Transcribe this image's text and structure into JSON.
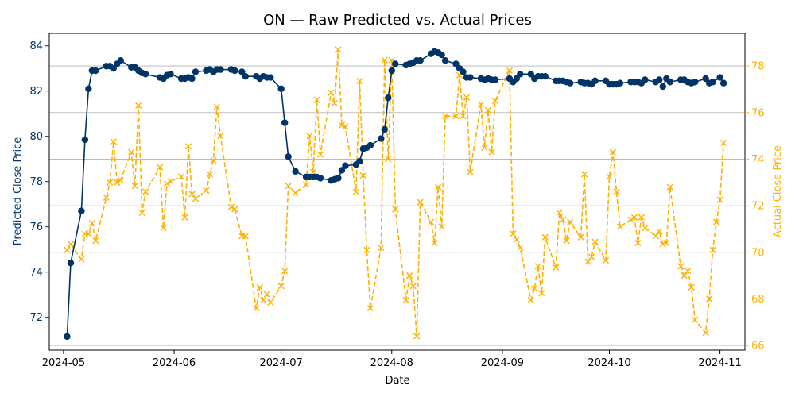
{
  "chart_data": {
    "type": "line",
    "title": "ON — Raw Predicted vs. Actual Prices",
    "xlabel": "Date",
    "ylabel_left": "Predicted Close Price",
    "ylabel_right": "Actual Close Price",
    "x_ticks": [
      "2024-05",
      "2024-06",
      "2024-07",
      "2024-08",
      "2024-09",
      "2024-10",
      "2024-11"
    ],
    "x_range": [
      "2024-04-27",
      "2024-11-08"
    ],
    "y_left_ticks": [
      72,
      74,
      76,
      78,
      80,
      82,
      84
    ],
    "y_left_range": [
      70.55,
      84.55
    ],
    "y_right_ticks": [
      66,
      68,
      70,
      72,
      74,
      76,
      78
    ],
    "y_right_range": [
      65.8,
      79.4
    ],
    "grid": "horizontal lines at right-axis ticks",
    "colors": {
      "predicted": "#003366",
      "actual": "#ffb000"
    },
    "series": [
      {
        "name": "Predicted Close Price",
        "axis": "left",
        "style": "solid line with circle markers",
        "points": [
          [
            "2024-05-02",
            71.15
          ],
          [
            "2024-05-03",
            74.4
          ],
          [
            "2024-05-06",
            76.7
          ],
          [
            "2024-05-07",
            79.85
          ],
          [
            "2024-05-08",
            82.1
          ],
          [
            "2024-05-09",
            82.9
          ],
          [
            "2024-05-10",
            82.9
          ],
          [
            "2024-05-13",
            83.1
          ],
          [
            "2024-05-14",
            83.1
          ],
          [
            "2024-05-15",
            83.0
          ],
          [
            "2024-05-16",
            83.2
          ],
          [
            "2024-05-17",
            83.35
          ],
          [
            "2024-05-20",
            83.05
          ],
          [
            "2024-05-21",
            83.05
          ],
          [
            "2024-05-22",
            82.9
          ],
          [
            "2024-05-23",
            82.8
          ],
          [
            "2024-05-24",
            82.75
          ],
          [
            "2024-05-28",
            82.6
          ],
          [
            "2024-05-29",
            82.55
          ],
          [
            "2024-05-30",
            82.7
          ],
          [
            "2024-05-31",
            82.75
          ],
          [
            "2024-06-03",
            82.55
          ],
          [
            "2024-06-04",
            82.55
          ],
          [
            "2024-06-05",
            82.6
          ],
          [
            "2024-06-06",
            82.55
          ],
          [
            "2024-06-07",
            82.85
          ],
          [
            "2024-06-10",
            82.9
          ],
          [
            "2024-06-11",
            82.95
          ],
          [
            "2024-06-12",
            82.85
          ],
          [
            "2024-06-13",
            82.95
          ],
          [
            "2024-06-14",
            82.95
          ],
          [
            "2024-06-17",
            82.95
          ],
          [
            "2024-06-18",
            82.9
          ],
          [
            "2024-06-20",
            82.85
          ],
          [
            "2024-06-21",
            82.65
          ],
          [
            "2024-06-24",
            82.65
          ],
          [
            "2024-06-25",
            82.55
          ],
          [
            "2024-06-26",
            82.65
          ],
          [
            "2024-06-27",
            82.6
          ],
          [
            "2024-06-28",
            82.6
          ],
          [
            "2024-07-01",
            82.1
          ],
          [
            "2024-07-02",
            80.6
          ],
          [
            "2024-07-03",
            79.1
          ],
          [
            "2024-07-05",
            78.45
          ],
          [
            "2024-07-08",
            78.2
          ],
          [
            "2024-07-09",
            78.2
          ],
          [
            "2024-07-10",
            78.2
          ],
          [
            "2024-07-11",
            78.2
          ],
          [
            "2024-07-12",
            78.15
          ],
          [
            "2024-07-15",
            78.05
          ],
          [
            "2024-07-16",
            78.1
          ],
          [
            "2024-07-17",
            78.15
          ],
          [
            "2024-07-18",
            78.5
          ],
          [
            "2024-07-19",
            78.7
          ],
          [
            "2024-07-22",
            78.75
          ],
          [
            "2024-07-23",
            78.9
          ],
          [
            "2024-07-24",
            79.45
          ],
          [
            "2024-07-25",
            79.5
          ],
          [
            "2024-07-26",
            79.6
          ],
          [
            "2024-07-29",
            79.9
          ],
          [
            "2024-07-30",
            80.3
          ],
          [
            "2024-07-31",
            81.7
          ],
          [
            "2024-08-01",
            82.9
          ],
          [
            "2024-08-02",
            83.2
          ],
          [
            "2024-08-05",
            83.15
          ],
          [
            "2024-08-06",
            83.2
          ],
          [
            "2024-08-07",
            83.25
          ],
          [
            "2024-08-08",
            83.35
          ],
          [
            "2024-08-09",
            83.35
          ],
          [
            "2024-08-12",
            83.65
          ],
          [
            "2024-08-13",
            83.75
          ],
          [
            "2024-08-14",
            83.7
          ],
          [
            "2024-08-15",
            83.6
          ],
          [
            "2024-08-16",
            83.35
          ],
          [
            "2024-08-19",
            83.2
          ],
          [
            "2024-08-20",
            83.0
          ],
          [
            "2024-08-21",
            82.85
          ],
          [
            "2024-08-22",
            82.6
          ],
          [
            "2024-08-23",
            82.6
          ],
          [
            "2024-08-26",
            82.55
          ],
          [
            "2024-08-27",
            82.5
          ],
          [
            "2024-08-28",
            82.55
          ],
          [
            "2024-08-29",
            82.5
          ],
          [
            "2024-08-30",
            82.5
          ],
          [
            "2024-09-03",
            82.55
          ],
          [
            "2024-09-04",
            82.4
          ],
          [
            "2024-09-05",
            82.55
          ],
          [
            "2024-09-06",
            82.75
          ],
          [
            "2024-09-09",
            82.75
          ],
          [
            "2024-09-10",
            82.55
          ],
          [
            "2024-09-11",
            82.65
          ],
          [
            "2024-09-12",
            82.65
          ],
          [
            "2024-09-13",
            82.65
          ],
          [
            "2024-09-16",
            82.45
          ],
          [
            "2024-09-17",
            82.45
          ],
          [
            "2024-09-18",
            82.45
          ],
          [
            "2024-09-19",
            82.4
          ],
          [
            "2024-09-20",
            82.35
          ],
          [
            "2024-09-23",
            82.4
          ],
          [
            "2024-09-24",
            82.35
          ],
          [
            "2024-09-25",
            82.35
          ],
          [
            "2024-09-26",
            82.3
          ],
          [
            "2024-09-27",
            82.45
          ],
          [
            "2024-09-30",
            82.45
          ],
          [
            "2024-10-01",
            82.3
          ],
          [
            "2024-10-02",
            82.3
          ],
          [
            "2024-10-03",
            82.3
          ],
          [
            "2024-10-04",
            82.35
          ],
          [
            "2024-10-07",
            82.4
          ],
          [
            "2024-10-08",
            82.4
          ],
          [
            "2024-10-09",
            82.4
          ],
          [
            "2024-10-10",
            82.35
          ],
          [
            "2024-10-11",
            82.5
          ],
          [
            "2024-10-14",
            82.4
          ],
          [
            "2024-10-15",
            82.5
          ],
          [
            "2024-10-16",
            82.2
          ],
          [
            "2024-10-17",
            82.55
          ],
          [
            "2024-10-18",
            82.4
          ],
          [
            "2024-10-21",
            82.5
          ],
          [
            "2024-10-22",
            82.5
          ],
          [
            "2024-10-23",
            82.4
          ],
          [
            "2024-10-24",
            82.35
          ],
          [
            "2024-10-25",
            82.4
          ],
          [
            "2024-10-28",
            82.55
          ],
          [
            "2024-10-29",
            82.35
          ],
          [
            "2024-10-30",
            82.4
          ],
          [
            "2024-11-01",
            82.6
          ],
          [
            "2024-11-02",
            82.35
          ]
        ]
      },
      {
        "name": "Actual Close Price",
        "axis": "right",
        "style": "dashed line with x markers",
        "points": [
          [
            "2024-05-02",
            70.1
          ],
          [
            "2024-05-03",
            70.35
          ],
          [
            "2024-05-06",
            69.7
          ],
          [
            "2024-05-07",
            70.8
          ],
          [
            "2024-05-08",
            70.8
          ],
          [
            "2024-05-09",
            71.25
          ],
          [
            "2024-05-10",
            70.5
          ],
          [
            "2024-05-13",
            72.35
          ],
          [
            "2024-05-14",
            73.0
          ],
          [
            "2024-05-15",
            74.75
          ],
          [
            "2024-05-16",
            73.0
          ],
          [
            "2024-05-17",
            73.1
          ],
          [
            "2024-05-20",
            74.3
          ],
          [
            "2024-05-21",
            72.85
          ],
          [
            "2024-05-22",
            76.3
          ],
          [
            "2024-05-23",
            71.7
          ],
          [
            "2024-05-24",
            72.6
          ],
          [
            "2024-05-28",
            73.65
          ],
          [
            "2024-05-29",
            71.05
          ],
          [
            "2024-05-30",
            72.95
          ],
          [
            "2024-05-31",
            73.05
          ],
          [
            "2024-06-03",
            73.25
          ],
          [
            "2024-06-04",
            71.5
          ],
          [
            "2024-06-05",
            74.55
          ],
          [
            "2024-06-06",
            72.5
          ],
          [
            "2024-06-07",
            72.3
          ],
          [
            "2024-06-10",
            72.65
          ],
          [
            "2024-06-11",
            73.35
          ],
          [
            "2024-06-12",
            73.95
          ],
          [
            "2024-06-13",
            76.25
          ],
          [
            "2024-06-14",
            75.0
          ],
          [
            "2024-06-17",
            71.95
          ],
          [
            "2024-06-18",
            71.85
          ],
          [
            "2024-06-20",
            70.7
          ],
          [
            "2024-06-21",
            70.7
          ],
          [
            "2024-06-24",
            67.6
          ],
          [
            "2024-06-25",
            68.5
          ],
          [
            "2024-06-26",
            67.95
          ],
          [
            "2024-06-27",
            68.2
          ],
          [
            "2024-06-28",
            67.85
          ],
          [
            "2024-07-01",
            68.55
          ],
          [
            "2024-07-02",
            69.2
          ],
          [
            "2024-07-03",
            72.85
          ],
          [
            "2024-07-05",
            72.55
          ],
          [
            "2024-07-08",
            72.9
          ],
          [
            "2024-07-09",
            75.0
          ],
          [
            "2024-07-10",
            73.45
          ],
          [
            "2024-07-11",
            76.55
          ],
          [
            "2024-07-12",
            74.2
          ],
          [
            "2024-07-15",
            76.85
          ],
          [
            "2024-07-16",
            76.4
          ],
          [
            "2024-07-17",
            78.7
          ],
          [
            "2024-07-18",
            75.45
          ],
          [
            "2024-07-19",
            75.4
          ],
          [
            "2024-07-22",
            72.6
          ],
          [
            "2024-07-23",
            77.35
          ],
          [
            "2024-07-24",
            73.3
          ],
          [
            "2024-07-25",
            70.1
          ],
          [
            "2024-07-26",
            67.6
          ],
          [
            "2024-07-29",
            70.2
          ],
          [
            "2024-07-30",
            78.25
          ],
          [
            "2024-07-31",
            74.0
          ],
          [
            "2024-08-01",
            78.25
          ],
          [
            "2024-08-02",
            71.85
          ],
          [
            "2024-08-05",
            67.95
          ],
          [
            "2024-08-06",
            69.0
          ],
          [
            "2024-08-07",
            68.55
          ],
          [
            "2024-08-08",
            66.4
          ],
          [
            "2024-08-09",
            72.15
          ],
          [
            "2024-08-12",
            71.3
          ],
          [
            "2024-08-13",
            70.4
          ],
          [
            "2024-08-14",
            72.8
          ],
          [
            "2024-08-15",
            71.1
          ],
          [
            "2024-08-16",
            75.85
          ],
          [
            "2024-08-19",
            75.85
          ],
          [
            "2024-08-20",
            77.6
          ],
          [
            "2024-08-21",
            75.85
          ],
          [
            "2024-08-22",
            76.65
          ],
          [
            "2024-08-23",
            73.45
          ],
          [
            "2024-08-26",
            76.35
          ],
          [
            "2024-08-27",
            74.5
          ],
          [
            "2024-08-28",
            76.1
          ],
          [
            "2024-08-29",
            74.3
          ],
          [
            "2024-08-30",
            76.5
          ],
          [
            "2024-09-03",
            77.8
          ],
          [
            "2024-09-04",
            70.8
          ],
          [
            "2024-09-05",
            70.55
          ],
          [
            "2024-09-06",
            70.2
          ],
          [
            "2024-09-09",
            67.95
          ],
          [
            "2024-09-10",
            68.45
          ],
          [
            "2024-09-11",
            69.4
          ],
          [
            "2024-09-12",
            68.25
          ],
          [
            "2024-09-13",
            70.65
          ],
          [
            "2024-09-16",
            69.35
          ],
          [
            "2024-09-17",
            71.7
          ],
          [
            "2024-09-18",
            71.4
          ],
          [
            "2024-09-19",
            70.5
          ],
          [
            "2024-09-20",
            71.3
          ],
          [
            "2024-09-23",
            70.65
          ],
          [
            "2024-09-24",
            73.35
          ],
          [
            "2024-09-25",
            69.6
          ],
          [
            "2024-09-26",
            69.8
          ],
          [
            "2024-09-27",
            70.45
          ],
          [
            "2024-09-30",
            69.65
          ],
          [
            "2024-10-01",
            73.25
          ],
          [
            "2024-10-02",
            74.3
          ],
          [
            "2024-10-03",
            72.6
          ],
          [
            "2024-10-04",
            71.1
          ],
          [
            "2024-10-07",
            71.4
          ],
          [
            "2024-10-08",
            71.5
          ],
          [
            "2024-10-09",
            70.4
          ],
          [
            "2024-10-10",
            71.5
          ],
          [
            "2024-10-11",
            71.05
          ],
          [
            "2024-10-14",
            70.7
          ],
          [
            "2024-10-15",
            70.9
          ],
          [
            "2024-10-16",
            70.35
          ],
          [
            "2024-10-17",
            70.4
          ],
          [
            "2024-10-18",
            72.8
          ],
          [
            "2024-10-21",
            69.4
          ],
          [
            "2024-10-22",
            69.0
          ],
          [
            "2024-10-23",
            69.2
          ],
          [
            "2024-10-24",
            68.5
          ],
          [
            "2024-10-25",
            67.1
          ],
          [
            "2024-10-28",
            66.55
          ],
          [
            "2024-10-29",
            68.0
          ],
          [
            "2024-10-30",
            70.1
          ],
          [
            "2024-10-31",
            71.3
          ],
          [
            "2024-11-01",
            72.25
          ],
          [
            "2024-11-02",
            74.7
          ]
        ]
      }
    ]
  }
}
